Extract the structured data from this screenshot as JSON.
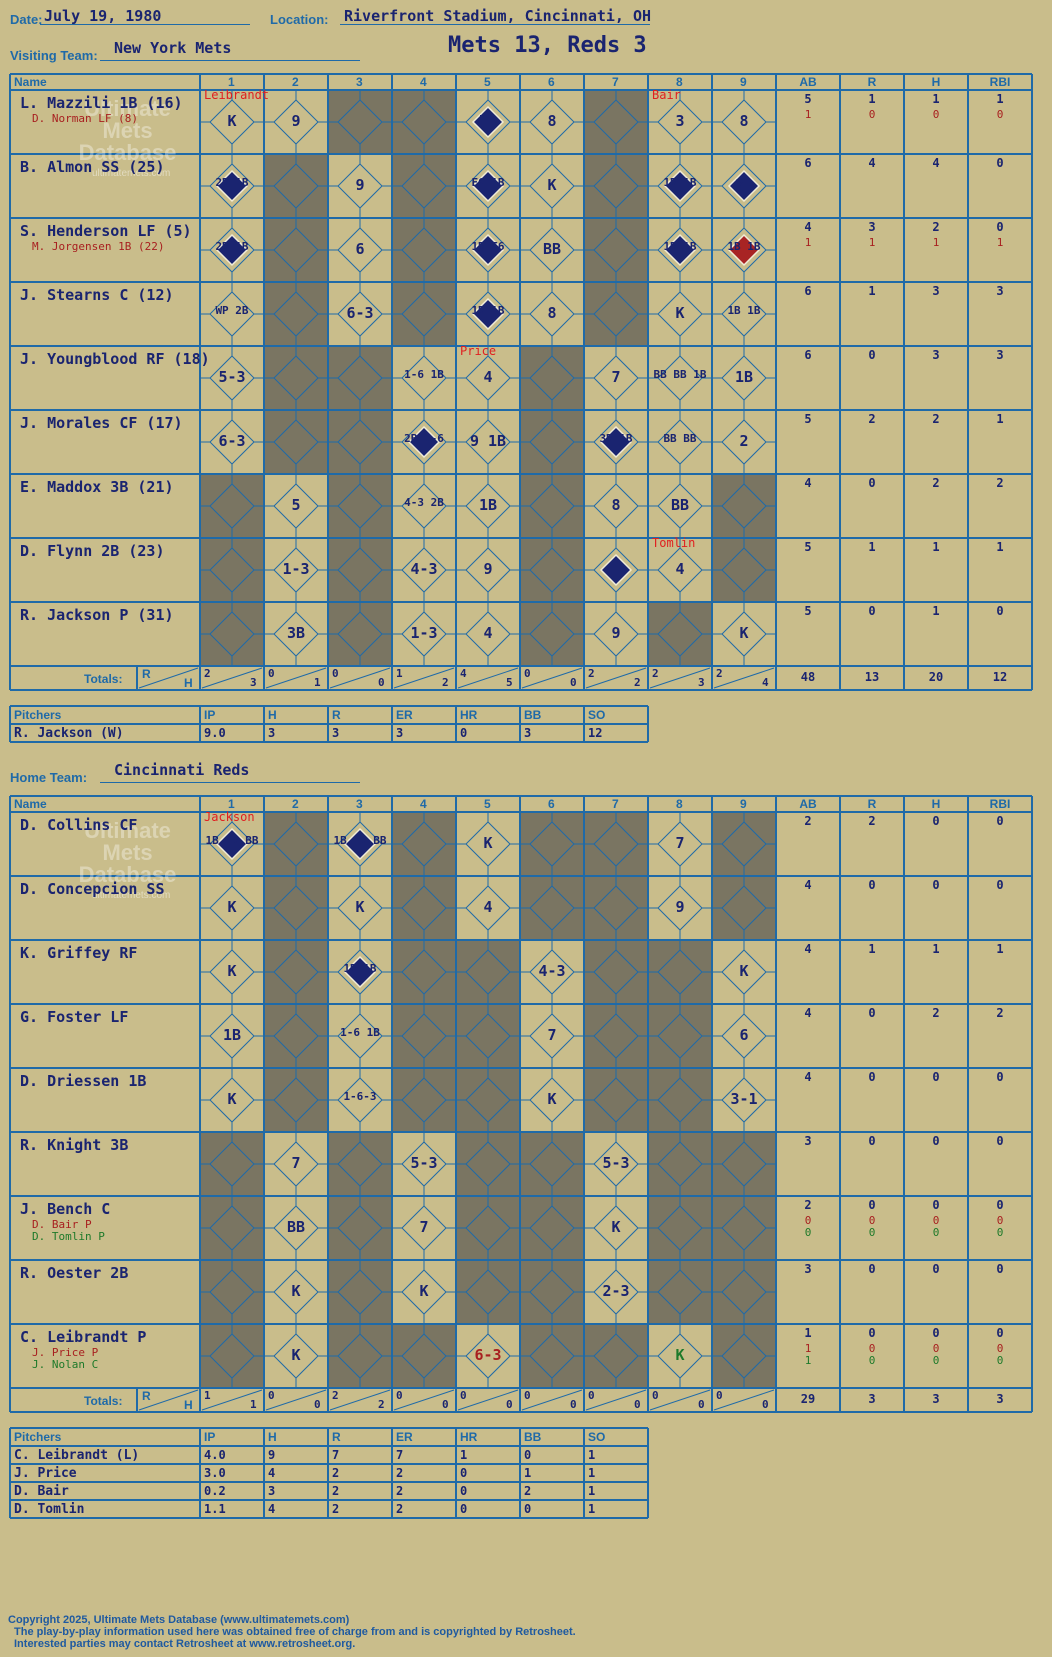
{
  "header": {
    "date_label": "Date:",
    "date": "July 19, 1980",
    "location_label": "Location:",
    "location": "Riverfront Stadium, Cincinnati, OH",
    "visiting_label": "Visiting Team:",
    "visiting_team": "New York Mets",
    "score_title": "Mets 13, Reds 3",
    "home_label": "Home Team:",
    "home_team": "Cincinnati Reds"
  },
  "columns": {
    "name": "Name",
    "innings": [
      "1",
      "2",
      "3",
      "4",
      "5",
      "6",
      "7",
      "8",
      "9"
    ],
    "stats": [
      "AB",
      "R",
      "H",
      "RBI"
    ],
    "totals_label": "Totals:",
    "r_label": "R",
    "h_label": "H"
  },
  "watermark": {
    "line1": "Ultimate",
    "line2": "Mets",
    "line3": "Database",
    "site": "ultimatemets.com"
  },
  "visitors": {
    "players": [
      {
        "name": "L. Mazzili 1B (16)",
        "sub": "D. Norman LF (8)",
        "ab": "5",
        "r": "1",
        "h": "1",
        "rbi": "1",
        "sab": "1",
        "sr": "0",
        "sh": "0",
        "srbi": "0"
      },
      {
        "name": "B. Almon SS (25)",
        "ab": "6",
        "r": "4",
        "h": "4",
        "rbi": "0"
      },
      {
        "name": "S. Henderson LF (5)",
        "sub": "M. Jorgensen 1B (22)",
        "ab": "4",
        "r": "3",
        "h": "2",
        "rbi": "0",
        "sab": "1",
        "sr": "1",
        "sh": "1",
        "srbi": "1"
      },
      {
        "name": "J. Stearns C (12)",
        "ab": "6",
        "r": "1",
        "h": "3",
        "rbi": "3"
      },
      {
        "name": "J. Youngblood RF (18)",
        "ab": "6",
        "r": "0",
        "h": "3",
        "rbi": "3"
      },
      {
        "name": "J. Morales CF (17)",
        "ab": "5",
        "r": "2",
        "h": "2",
        "rbi": "1"
      },
      {
        "name": "E. Maddox 3B (21)",
        "ab": "4",
        "r": "0",
        "h": "2",
        "rbi": "2"
      },
      {
        "name": "D. Flynn 2B (23)",
        "ab": "5",
        "r": "1",
        "h": "1",
        "rbi": "1"
      },
      {
        "name": "R. Jackson P (31)",
        "ab": "5",
        "r": "0",
        "h": "1",
        "rbi": "0"
      }
    ],
    "totals": [
      [
        "2",
        "3"
      ],
      [
        "0",
        "1"
      ],
      [
        "0",
        "0"
      ],
      [
        "1",
        "2"
      ],
      [
        "4",
        "5"
      ],
      [
        "0",
        "0"
      ],
      [
        "2",
        "2"
      ],
      [
        "2",
        "3"
      ],
      [
        "2",
        "4"
      ]
    ],
    "stat_totals": [
      "48",
      "13",
      "20",
      "12"
    ],
    "pitcher_notes": [
      {
        "inning": 0,
        "row": 0,
        "text": "Leibrandt"
      },
      {
        "inning": 7,
        "row": 0,
        "text": "Bair"
      },
      {
        "inning": 4,
        "row": 4,
        "text": "Price"
      },
      {
        "inning": 7,
        "row": 7,
        "text": "Tomlin"
      }
    ],
    "plays": [
      {
        "r": 0,
        "i": 0,
        "t": "K"
      },
      {
        "r": 0,
        "i": 1,
        "t": "9"
      },
      {
        "r": 0,
        "i": 4,
        "t": "HR"
      },
      {
        "r": 0,
        "i": 5,
        "t": "8"
      },
      {
        "r": 0,
        "i": 7,
        "t": "3"
      },
      {
        "r": 0,
        "i": 8,
        "t": "8"
      },
      {
        "r": 1,
        "i": 0,
        "t": "2B 1B"
      },
      {
        "r": 1,
        "i": 2,
        "t": "9"
      },
      {
        "r": 1,
        "i": 4,
        "t": "E6 1B"
      },
      {
        "r": 1,
        "i": 5,
        "t": "K"
      },
      {
        "r": 1,
        "i": 7,
        "t": "1B 1B"
      },
      {
        "r": 1,
        "i": 8,
        "t": "3B"
      },
      {
        "r": 2,
        "i": 0,
        "t": "2B 1B"
      },
      {
        "r": 2,
        "i": 2,
        "t": "6"
      },
      {
        "r": 2,
        "i": 4,
        "t": "1B E6"
      },
      {
        "r": 2,
        "i": 5,
        "t": "BB"
      },
      {
        "r": 2,
        "i": 7,
        "t": "1B 1B"
      },
      {
        "r": 2,
        "i": 8,
        "t": "1B 1B"
      },
      {
        "r": 3,
        "i": 0,
        "t": "WP 2B"
      },
      {
        "r": 3,
        "i": 2,
        "t": "6-3"
      },
      {
        "r": 3,
        "i": 4,
        "t": "1B 1B"
      },
      {
        "r": 3,
        "i": 5,
        "t": "8"
      },
      {
        "r": 3,
        "i": 7,
        "t": "K"
      },
      {
        "r": 3,
        "i": 8,
        "t": "1B 1B"
      },
      {
        "r": 4,
        "i": 0,
        "t": "5-3"
      },
      {
        "r": 4,
        "i": 3,
        "t": "1-6 1B"
      },
      {
        "r": 4,
        "i": 4,
        "t": "4"
      },
      {
        "r": 4,
        "i": 6,
        "t": "7"
      },
      {
        "r": 4,
        "i": 7,
        "t": "BB BB 1B"
      },
      {
        "r": 4,
        "i": 8,
        "t": "1B"
      },
      {
        "r": 5,
        "i": 0,
        "t": "6-3"
      },
      {
        "r": 5,
        "i": 3,
        "t": "2B 1-6"
      },
      {
        "r": 5,
        "i": 4,
        "t": "9 1B"
      },
      {
        "r": 5,
        "i": 6,
        "t": "3B 1B"
      },
      {
        "r": 5,
        "i": 7,
        "t": "BB BB"
      },
      {
        "r": 5,
        "i": 8,
        "t": "2"
      },
      {
        "r": 6,
        "i": 1,
        "t": "5"
      },
      {
        "r": 6,
        "i": 3,
        "t": "4-3 2B"
      },
      {
        "r": 6,
        "i": 4,
        "t": "1B"
      },
      {
        "r": 6,
        "i": 6,
        "t": "8"
      },
      {
        "r": 6,
        "i": 7,
        "t": "BB"
      },
      {
        "r": 7,
        "i": 1,
        "t": "1-3"
      },
      {
        "r": 7,
        "i": 3,
        "t": "4-3"
      },
      {
        "r": 7,
        "i": 4,
        "t": "9"
      },
      {
        "r": 7,
        "i": 7,
        "t": "4"
      },
      {
        "r": 8,
        "i": 1,
        "t": "3B"
      },
      {
        "r": 8,
        "i": 3,
        "t": "1-3"
      },
      {
        "r": 8,
        "i": 4,
        "t": "4"
      },
      {
        "r": 8,
        "i": 6,
        "t": "9"
      },
      {
        "r": 8,
        "i": 8,
        "t": "K"
      }
    ],
    "scored": [
      [
        0,
        4
      ],
      [
        1,
        0
      ],
      [
        1,
        4
      ],
      [
        1,
        7
      ],
      [
        1,
        8
      ],
      [
        2,
        0
      ],
      [
        2,
        4
      ],
      [
        2,
        7
      ],
      [
        3,
        4
      ],
      [
        5,
        3
      ],
      [
        5,
        6
      ],
      [
        7,
        6
      ]
    ],
    "scored_red": [
      [
        2,
        8
      ]
    ],
    "gray": [
      [
        0,
        2
      ],
      [
        0,
        3
      ],
      [
        0,
        6
      ],
      [
        1,
        1
      ],
      [
        1,
        3
      ],
      [
        1,
        6
      ],
      [
        2,
        1
      ],
      [
        2,
        3
      ],
      [
        2,
        6
      ],
      [
        3,
        1
      ],
      [
        3,
        3
      ],
      [
        3,
        6
      ],
      [
        4,
        1
      ],
      [
        4,
        2
      ],
      [
        4,
        5
      ],
      [
        5,
        1
      ],
      [
        5,
        2
      ],
      [
        5,
        5
      ],
      [
        6,
        0
      ],
      [
        6,
        2
      ],
      [
        6,
        5
      ],
      [
        6,
        8
      ],
      [
        7,
        0
      ],
      [
        7,
        2
      ],
      [
        7,
        5
      ],
      [
        7,
        8
      ],
      [
        8,
        0
      ],
      [
        8,
        2
      ],
      [
        8,
        5
      ],
      [
        8,
        7
      ]
    ]
  },
  "visitors_pitching": {
    "headers": [
      "Pitchers",
      "IP",
      "H",
      "R",
      "ER",
      "HR",
      "BB",
      "SO"
    ],
    "rows": [
      [
        "R. Jackson (W)",
        "9.0",
        "3",
        "3",
        "3",
        "0",
        "3",
        "12"
      ]
    ]
  },
  "home": {
    "players": [
      {
        "name": "D. Collins CF",
        "ab": "2",
        "r": "2",
        "h": "0",
        "rbi": "0"
      },
      {
        "name": "D. Concepcion SS",
        "ab": "4",
        "r": "0",
        "h": "0",
        "rbi": "0"
      },
      {
        "name": "K. Griffey RF",
        "ab": "4",
        "r": "1",
        "h": "1",
        "rbi": "1"
      },
      {
        "name": "G. Foster LF",
        "ab": "4",
        "r": "0",
        "h": "2",
        "rbi": "2"
      },
      {
        "name": "D. Driessen 1B",
        "ab": "4",
        "r": "0",
        "h": "0",
        "rbi": "0"
      },
      {
        "name": "R. Knight 3B",
        "ab": "3",
        "r": "0",
        "h": "0",
        "rbi": "0"
      },
      {
        "name": "J. Bench C",
        "sub": "D. Bair P",
        "sub2": "D. Tomlin P",
        "ab": "2",
        "r": "0",
        "h": "0",
        "rbi": "0",
        "sab": "0",
        "sr": "0",
        "sh": "0",
        "srbi": "0",
        "s2ab": "0",
        "s2r": "0",
        "s2h": "0",
        "s2rbi": "0"
      },
      {
        "name": "R. Oester 2B",
        "ab": "3",
        "r": "0",
        "h": "0",
        "rbi": "0"
      },
      {
        "name": "C. Leibrandt P",
        "sub": "J. Price P",
        "sub2": "J. Nolan C",
        "ab": "1",
        "r": "0",
        "h": "0",
        "rbi": "0",
        "sab": "1",
        "sr": "0",
        "sh": "0",
        "srbi": "0",
        "s2ab": "1",
        "s2r": "0",
        "s2h": "0",
        "s2rbi": "0"
      }
    ],
    "totals": [
      [
        "1",
        "1"
      ],
      [
        "0",
        "0"
      ],
      [
        "2",
        "2"
      ],
      [
        "0",
        "0"
      ],
      [
        "0",
        "0"
      ],
      [
        "0",
        "0"
      ],
      [
        "0",
        "0"
      ],
      [
        "0",
        "0"
      ],
      [
        "0",
        "0"
      ]
    ],
    "stat_totals": [
      "29",
      "3",
      "3",
      "3"
    ],
    "pitcher_notes": [
      {
        "inning": 0,
        "row": 0,
        "text": "Jackson"
      }
    ],
    "plays": [
      {
        "r": 0,
        "i": 0,
        "t": "1B 1B BB"
      },
      {
        "r": 0,
        "i": 2,
        "t": "1B 1B BB"
      },
      {
        "r": 0,
        "i": 4,
        "t": "K"
      },
      {
        "r": 0,
        "i": 7,
        "t": "7"
      },
      {
        "r": 1,
        "i": 0,
        "t": "K"
      },
      {
        "r": 1,
        "i": 2,
        "t": "K"
      },
      {
        "r": 1,
        "i": 4,
        "t": "4"
      },
      {
        "r": 1,
        "i": 7,
        "t": "9"
      },
      {
        "r": 2,
        "i": 0,
        "t": "K"
      },
      {
        "r": 2,
        "i": 2,
        "t": "1B 1B"
      },
      {
        "r": 2,
        "i": 5,
        "t": "4-3"
      },
      {
        "r": 2,
        "i": 8,
        "t": "K"
      },
      {
        "r": 3,
        "i": 0,
        "t": "1B"
      },
      {
        "r": 3,
        "i": 2,
        "t": "1-6 1B"
      },
      {
        "r": 3,
        "i": 5,
        "t": "7"
      },
      {
        "r": 3,
        "i": 8,
        "t": "6"
      },
      {
        "r": 4,
        "i": 0,
        "t": "K"
      },
      {
        "r": 4,
        "i": 2,
        "t": "1-6-3"
      },
      {
        "r": 4,
        "i": 5,
        "t": "K"
      },
      {
        "r": 4,
        "i": 8,
        "t": "3-1"
      },
      {
        "r": 5,
        "i": 1,
        "t": "7"
      },
      {
        "r": 5,
        "i": 3,
        "t": "5-3"
      },
      {
        "r": 5,
        "i": 6,
        "t": "5-3"
      },
      {
        "r": 6,
        "i": 1,
        "t": "BB"
      },
      {
        "r": 6,
        "i": 3,
        "t": "7"
      },
      {
        "r": 6,
        "i": 6,
        "t": "K"
      },
      {
        "r": 7,
        "i": 1,
        "t": "K"
      },
      {
        "r": 7,
        "i": 3,
        "t": "K"
      },
      {
        "r": 7,
        "i": 6,
        "t": "2-3"
      },
      {
        "r": 8,
        "i": 1,
        "t": "K"
      },
      {
        "r": 8,
        "i": 4,
        "t": "6-3",
        "color": "red"
      },
      {
        "r": 8,
        "i": 7,
        "t": "K",
        "color": "green"
      }
    ],
    "scored": [
      [
        0,
        0
      ],
      [
        0,
        2
      ],
      [
        2,
        2
      ]
    ],
    "scored_red": [],
    "gray": [
      [
        0,
        1
      ],
      [
        0,
        3
      ],
      [
        0,
        5
      ],
      [
        0,
        6
      ],
      [
        0,
        8
      ],
      [
        1,
        1
      ],
      [
        1,
        3
      ],
      [
        1,
        5
      ],
      [
        1,
        6
      ],
      [
        1,
        8
      ],
      [
        2,
        1
      ],
      [
        2,
        3
      ],
      [
        2,
        4
      ],
      [
        2,
        6
      ],
      [
        2,
        7
      ],
      [
        3,
        1
      ],
      [
        3,
        3
      ],
      [
        3,
        4
      ],
      [
        3,
        6
      ],
      [
        3,
        7
      ],
      [
        4,
        1
      ],
      [
        4,
        3
      ],
      [
        4,
        4
      ],
      [
        4,
        6
      ],
      [
        4,
        7
      ],
      [
        5,
        0
      ],
      [
        5,
        2
      ],
      [
        5,
        4
      ],
      [
        5,
        5
      ],
      [
        5,
        7
      ],
      [
        5,
        8
      ],
      [
        6,
        0
      ],
      [
        6,
        2
      ],
      [
        6,
        4
      ],
      [
        6,
        5
      ],
      [
        6,
        7
      ],
      [
        6,
        8
      ],
      [
        7,
        0
      ],
      [
        7,
        2
      ],
      [
        7,
        4
      ],
      [
        7,
        5
      ],
      [
        7,
        7
      ],
      [
        7,
        8
      ],
      [
        8,
        0
      ],
      [
        8,
        2
      ],
      [
        8,
        3
      ],
      [
        8,
        5
      ],
      [
        8,
        6
      ],
      [
        8,
        8
      ]
    ]
  },
  "home_pitching": {
    "headers": [
      "Pitchers",
      "IP",
      "H",
      "R",
      "ER",
      "HR",
      "BB",
      "SO"
    ],
    "rows": [
      [
        "C. Leibrandt (L)",
        "4.0",
        "9",
        "7",
        "7",
        "1",
        "0",
        "1"
      ],
      [
        "J. Price",
        "3.0",
        "4",
        "2",
        "2",
        "0",
        "1",
        "1"
      ],
      [
        "D. Bair",
        "0.2",
        "3",
        "2",
        "2",
        "0",
        "2",
        "1"
      ],
      [
        "D. Tomlin",
        "1.1",
        "4",
        "2",
        "2",
        "0",
        "0",
        "1"
      ]
    ]
  },
  "footer": {
    "line1": "Copyright 2025, Ultimate Mets Database (www.ultimatemets.com)",
    "line2": "The play-by-play information used here was obtained free of charge from and is copyrighted by Retrosheet.",
    "line3": "Interested parties may contact Retrosheet at www.retrosheet.org."
  }
}
